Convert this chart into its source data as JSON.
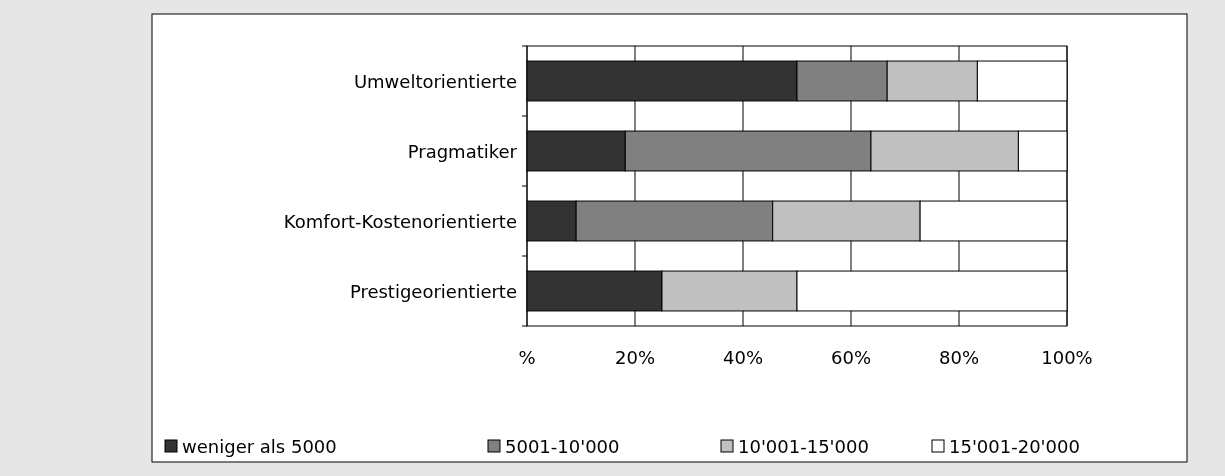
{
  "chart_data": {
    "type": "bar",
    "orientation": "horizontal",
    "stacked": true,
    "categories": [
      "Umweltorientierte",
      "Pragmatiker",
      "Komfort-Kostenorientierte",
      "Prestigeorientierte"
    ],
    "series": [
      {
        "name": "weniger als 5000",
        "color": "#333333",
        "values": [
          50,
          18.2,
          9.1,
          25
        ]
      },
      {
        "name": "5001-10'000",
        "color": "#808080",
        "values": [
          16.7,
          45.5,
          36.4,
          0
        ]
      },
      {
        "name": "10'001-15'000",
        "color": "#c0c0c0",
        "values": [
          16.7,
          27.3,
          27.3,
          25
        ]
      },
      {
        "name": "15'001-20'000",
        "color": "#ffffff",
        "values": [
          16.6,
          9,
          27.2,
          50
        ]
      }
    ],
    "xlim": [
      0,
      100
    ],
    "xticks": [
      {
        "value": 0,
        "label": "%"
      },
      {
        "value": 20,
        "label": "20%"
      },
      {
        "value": 40,
        "label": "40%"
      },
      {
        "value": 60,
        "label": "60%"
      },
      {
        "value": 80,
        "label": "80%"
      },
      {
        "value": 100,
        "label": "100%"
      }
    ],
    "grid": "x",
    "legend": "bottom"
  }
}
